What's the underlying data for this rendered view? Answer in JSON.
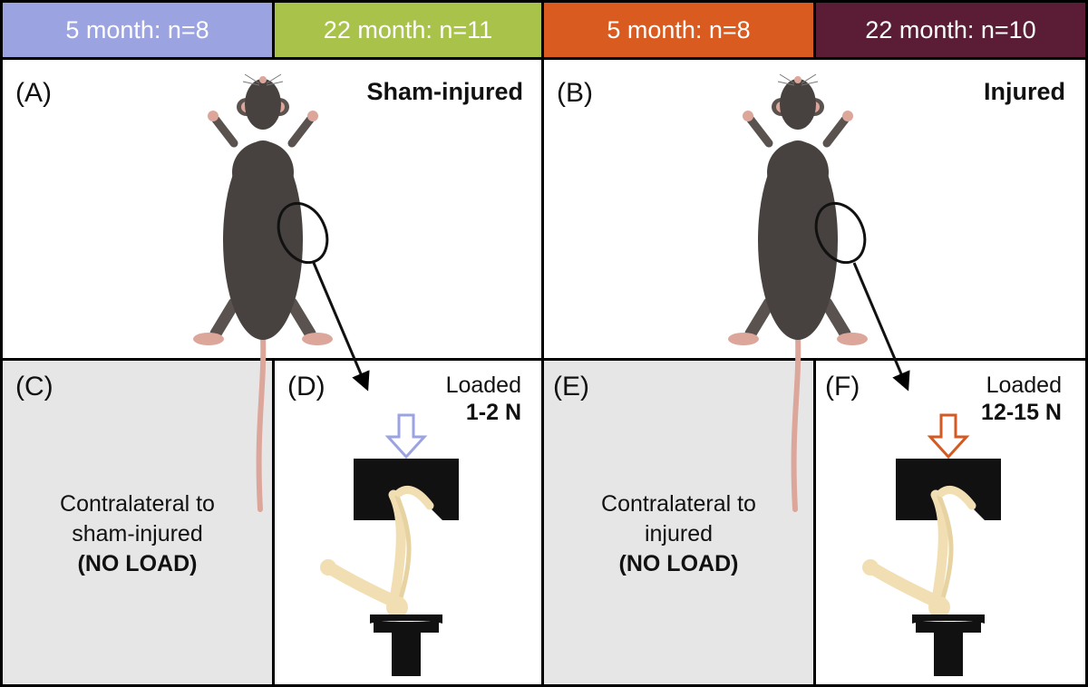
{
  "colors": {
    "group1": "#9ba3e0",
    "group2": "#a8c24a",
    "group3": "#d95b1f",
    "group4": "#5b1d35",
    "mouse_fur": "#47423f",
    "mouse_skin": "#dca69a",
    "bone": "#f1dfb3",
    "arrow_sham": "#b9bdf0",
    "arrow_injured": "#d35a22"
  },
  "header": {
    "groups": [
      {
        "label": "5 month: n=8"
      },
      {
        "label": "22 month: n=11"
      },
      {
        "label": "5 month: n=8"
      },
      {
        "label": "22 month: n=10"
      }
    ]
  },
  "panels": {
    "a": {
      "label": "(A)",
      "title": "Sham-injured"
    },
    "b": {
      "label": "(B)",
      "title": "Injured"
    },
    "c": {
      "label": "(C)",
      "line1": "Contralateral to",
      "line2": "sham-injured",
      "line3": "(NO LOAD)"
    },
    "d": {
      "label": "(D)",
      "load_label": "Loaded",
      "load_value": "1-2 N"
    },
    "e": {
      "label": "(E)",
      "line1": "Contralateral to",
      "line2": "injured",
      "line3": "(NO LOAD)"
    },
    "f": {
      "label": "(F)",
      "load_label": "Loaded",
      "load_value": "12-15 N"
    }
  },
  "icons": {
    "mouse": "mouse-icon",
    "knee_circle": "circle-highlight-icon",
    "pointer": "arrow-icon",
    "force": "down-arrow-icon",
    "loading_device": "loading-device-icon",
    "leg_bones": "bone-icon"
  }
}
